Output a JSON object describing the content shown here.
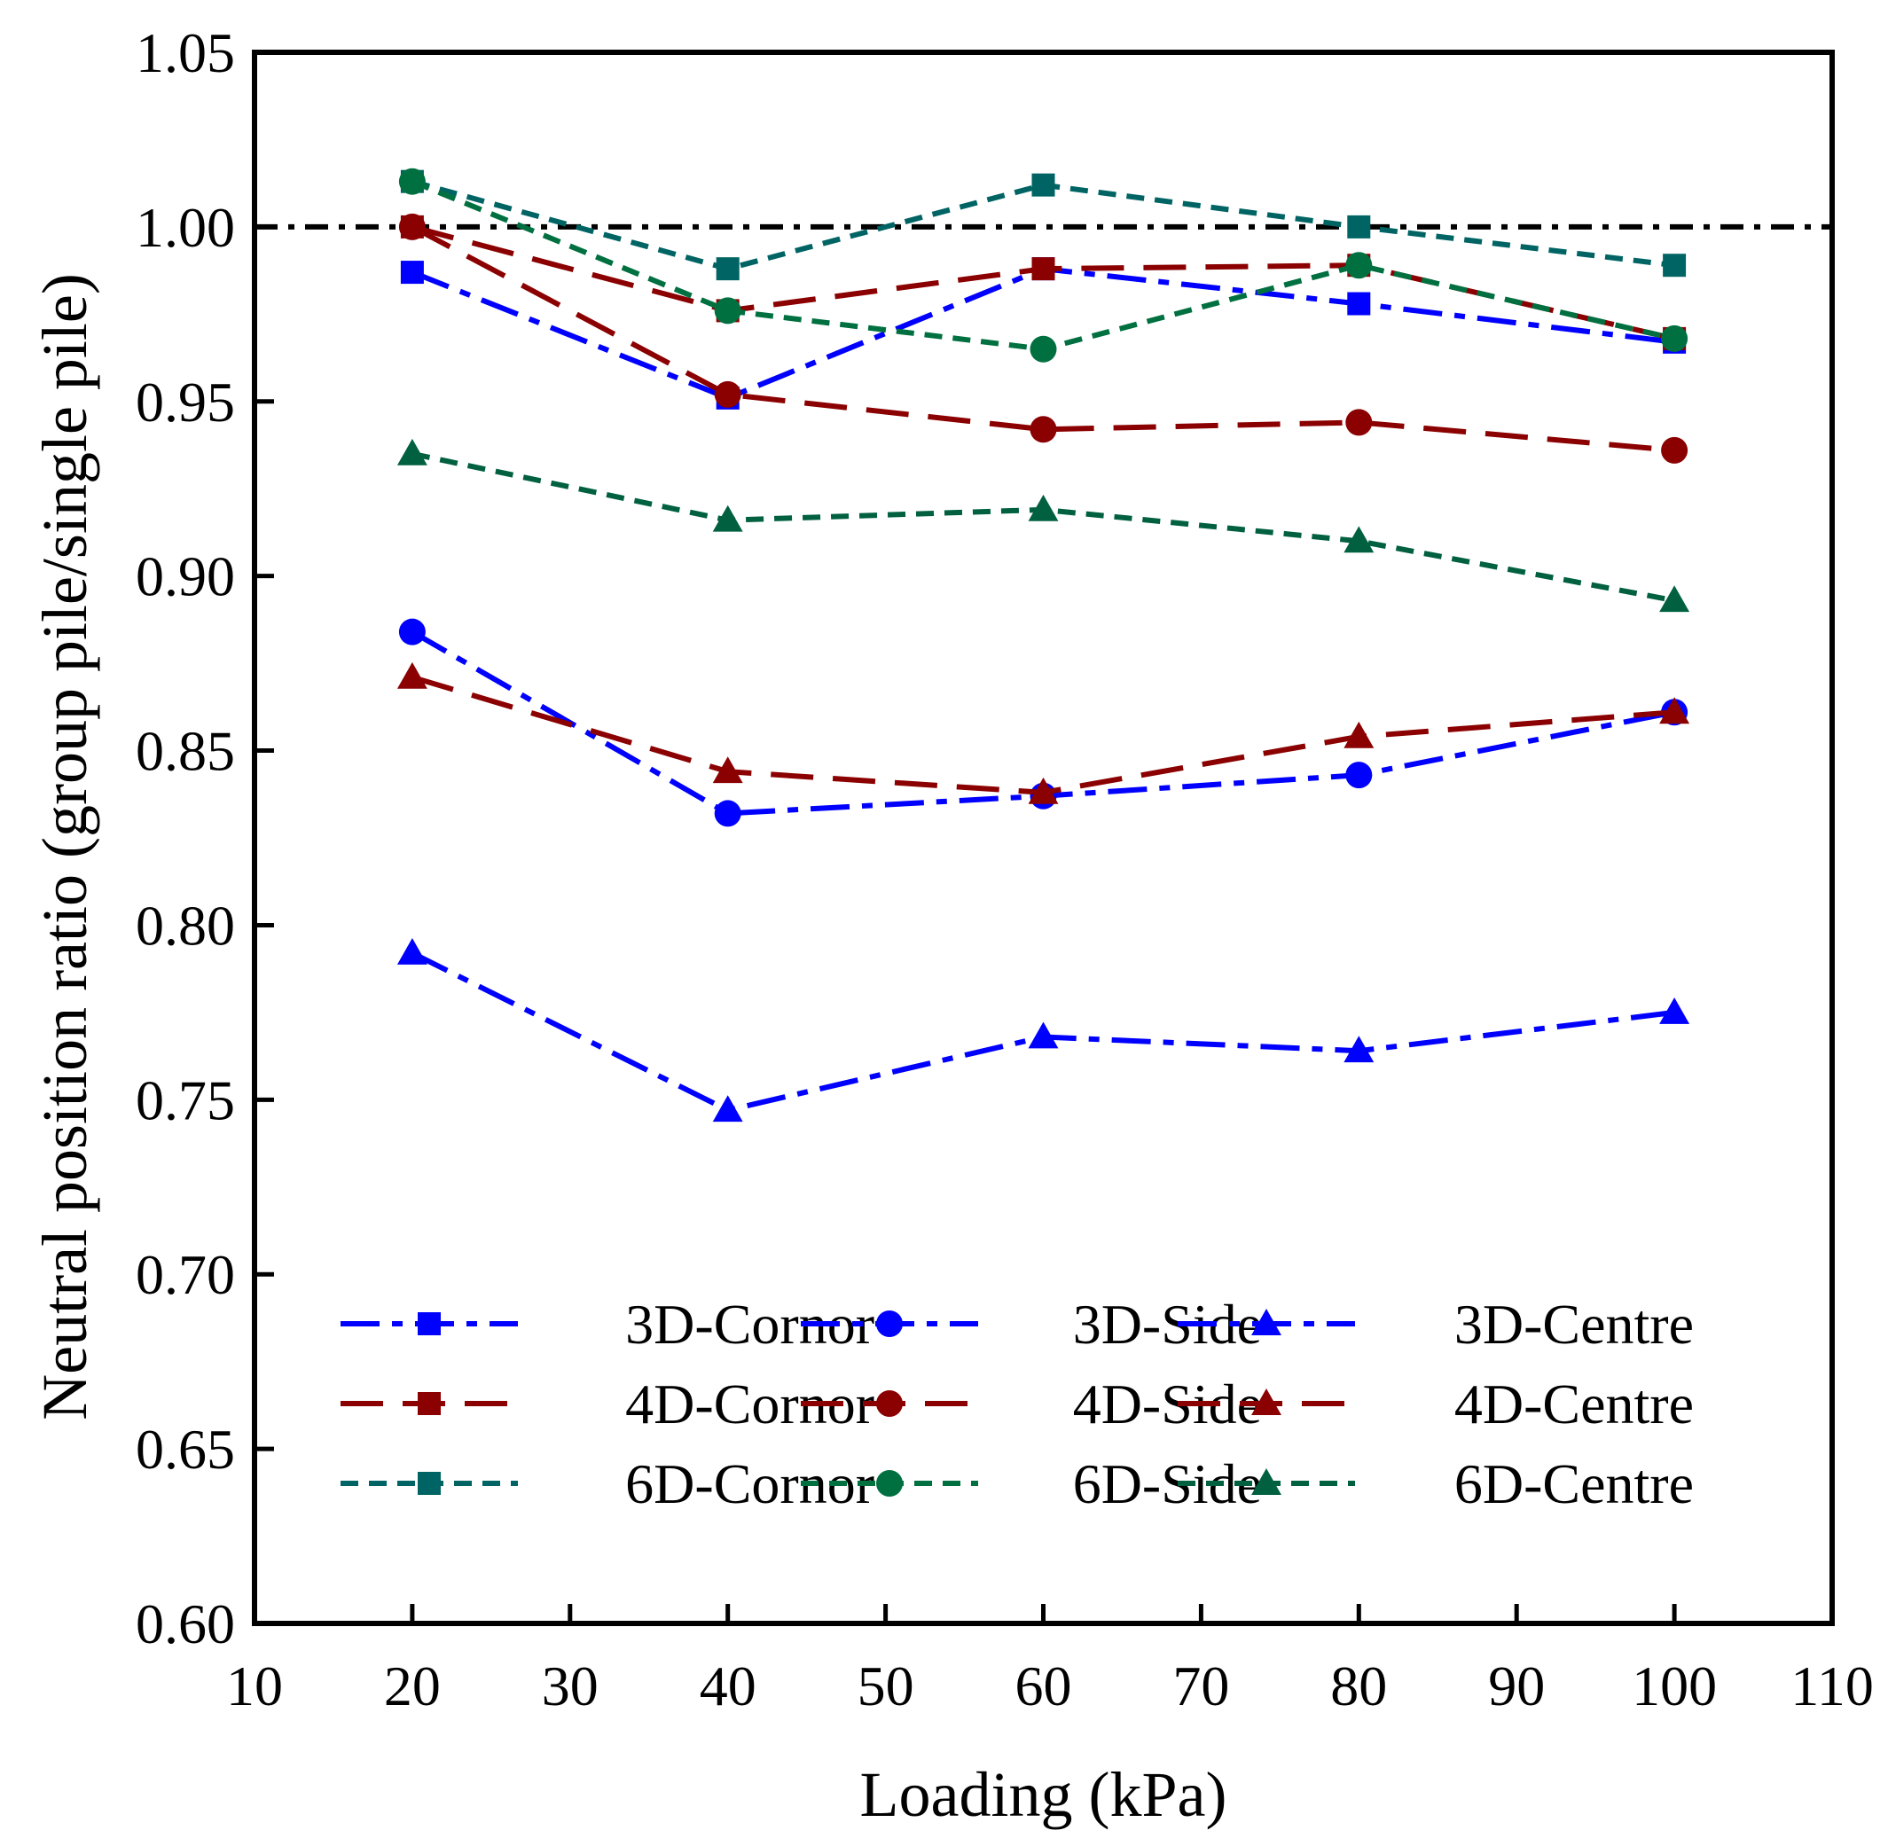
{
  "chart_data": {
    "type": "line",
    "xlabel": "Loading (kPa)",
    "ylabel": "Neutral position ratio (group pile/single pile)",
    "xlim": [
      10,
      110
    ],
    "ylim": [
      0.6,
      1.05
    ],
    "x_ticks": [
      "10",
      "20",
      "30",
      "40",
      "50",
      "60",
      "70",
      "80",
      "90",
      "100",
      "110"
    ],
    "y_ticks": [
      "0.60",
      "0.65",
      "0.70",
      "0.75",
      "0.80",
      "0.85",
      "0.90",
      "0.95",
      "1.00",
      "1.05"
    ],
    "reference_line": {
      "y": 1.0,
      "color": "#000000",
      "style": "dash-dot"
    },
    "legend_position": "lower-center",
    "x": [
      20,
      40,
      60,
      80,
      100
    ],
    "series": [
      {
        "name": "3D-Cornor",
        "color": "#0000ff",
        "marker": "square",
        "line_style": "dash-dot",
        "values": [
          0.987,
          0.951,
          0.988,
          0.978,
          0.967
        ]
      },
      {
        "name": "3D-Side",
        "color": "#0000ff",
        "marker": "circle",
        "line_style": "dash-dot",
        "values": [
          0.884,
          0.832,
          0.837,
          0.843,
          0.861
        ]
      },
      {
        "name": "3D-Centre",
        "color": "#0000ff",
        "marker": "triangle",
        "line_style": "dash-dot",
        "values": [
          0.792,
          0.747,
          0.768,
          0.764,
          0.775
        ]
      },
      {
        "name": "4D-Cornor",
        "color": "#8b0000",
        "marker": "square",
        "line_style": "dash",
        "values": [
          1.0,
          0.976,
          0.988,
          0.989,
          0.968
        ]
      },
      {
        "name": "4D-Side",
        "color": "#8b0000",
        "marker": "circle",
        "line_style": "dash",
        "values": [
          1.0,
          0.952,
          0.942,
          0.944,
          0.936
        ]
      },
      {
        "name": "4D-Centre",
        "color": "#8b0000",
        "marker": "triangle",
        "line_style": "dash",
        "values": [
          0.871,
          0.844,
          0.838,
          0.854,
          0.861
        ]
      },
      {
        "name": "6D-Cornor",
        "color": "#006464",
        "marker": "square",
        "line_style": "short-dash",
        "values": [
          1.013,
          0.988,
          1.012,
          1.0,
          0.989
        ]
      },
      {
        "name": "6D-Side",
        "color": "#007040",
        "marker": "circle",
        "line_style": "short-dash",
        "values": [
          1.013,
          0.976,
          0.965,
          0.989,
          0.968
        ]
      },
      {
        "name": "6D-Centre",
        "color": "#006040",
        "marker": "triangle",
        "line_style": "short-dash",
        "values": [
          0.935,
          0.916,
          0.919,
          0.91,
          0.893
        ]
      }
    ]
  }
}
